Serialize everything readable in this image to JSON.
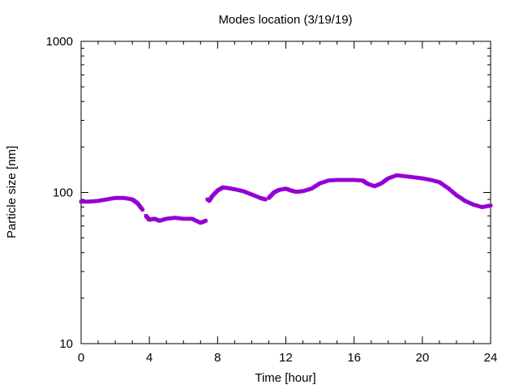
{
  "chart_data": {
    "type": "scatter",
    "title": "Modes location (3/19/19)",
    "xlabel": "Time [hour]",
    "ylabel": "Particle size [nm]",
    "xlim": [
      0,
      24
    ],
    "ylim": [
      10,
      1000
    ],
    "y_scale": "log",
    "x_ticks": [
      0,
      4,
      8,
      12,
      16,
      20,
      24
    ],
    "x_tick_labels": [
      "0",
      "4",
      "8",
      "12",
      "16",
      "20",
      "24"
    ],
    "y_ticks": [
      10,
      100,
      1000
    ],
    "y_tick_labels": [
      "10",
      "100",
      "1000"
    ],
    "grid": false,
    "legend": "none",
    "marker_color": "#9400d3",
    "series": [
      {
        "x": [
          0,
          0.5,
          1,
          1.5,
          2,
          2.5,
          3,
          3.3,
          3.6,
          3.8,
          4,
          4.3,
          4.6,
          5,
          5.5,
          6,
          6.5,
          7,
          7.3,
          7.4,
          7.5,
          7.7,
          8,
          8.3,
          8.6,
          9,
          9.5,
          10,
          10.5,
          10.8,
          11,
          11.3,
          11.6,
          12,
          12.3,
          12.6,
          13,
          13.5,
          14,
          14.5,
          15,
          15.5,
          16,
          16.5,
          16.8,
          17.2,
          17.6,
          18,
          18.5,
          19,
          19.5,
          20,
          20.5,
          21,
          21.5,
          22,
          22.5,
          23,
          23.5,
          24
        ],
        "y": [
          87,
          87,
          88,
          90,
          92,
          92,
          90,
          85,
          77,
          70,
          66,
          67,
          65,
          67,
          68,
          67,
          67,
          63,
          65,
          90,
          88,
          95,
          103,
          108,
          107,
          105,
          102,
          97,
          92,
          90,
          92,
          100,
          104,
          106,
          103,
          101,
          102,
          106,
          115,
          120,
          121,
          121,
          121,
          120,
          114,
          110,
          115,
          124,
          130,
          128,
          126,
          124,
          121,
          117,
          107,
          96,
          88,
          83,
          80,
          82
        ]
      }
    ]
  }
}
